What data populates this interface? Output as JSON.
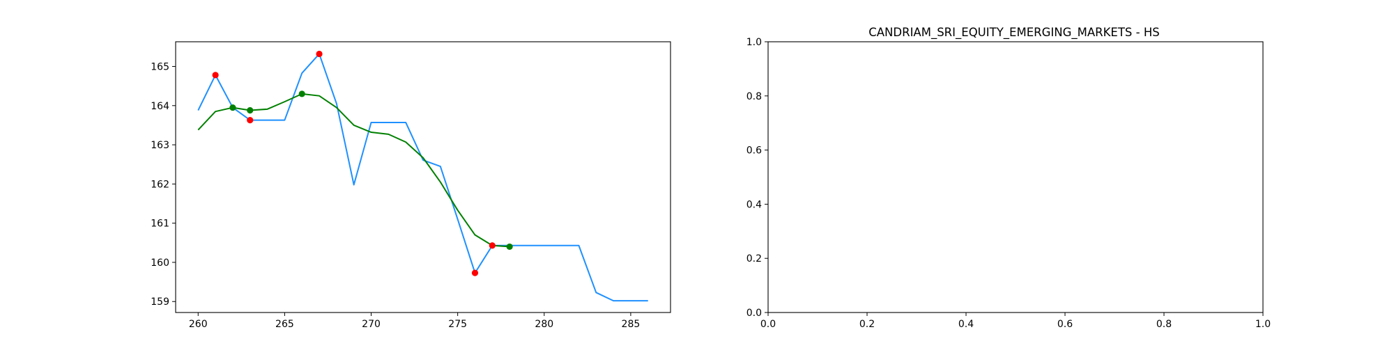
{
  "chart_data": [
    {
      "type": "line",
      "title": "",
      "xlabel": "",
      "ylabel": "",
      "xlim": [
        258.7,
        287.3
      ],
      "ylim": [
        158.72,
        165.63
      ],
      "grid": false,
      "legend": "none",
      "xticks": [
        260,
        265,
        270,
        275,
        280,
        285
      ],
      "yticks": [
        159,
        160,
        161,
        162,
        163,
        164,
        165
      ],
      "series": [
        {
          "kind": "line",
          "color": "#1e90ff",
          "x": [
            260,
            261,
            262,
            263,
            264,
            265,
            266,
            267,
            268,
            269,
            270,
            271,
            272,
            273,
            274,
            275,
            276,
            277,
            278,
            279,
            280,
            281,
            282,
            283,
            284,
            285,
            286
          ],
          "y": [
            163.88,
            164.78,
            163.95,
            163.63,
            163.63,
            163.63,
            164.83,
            165.32,
            164.05,
            161.98,
            163.57,
            163.57,
            163.57,
            162.61,
            162.45,
            161.1,
            159.73,
            160.43,
            160.43,
            160.43,
            160.43,
            160.43,
            160.43,
            159.23,
            159.02,
            159.02,
            159.02
          ]
        },
        {
          "kind": "line",
          "color": "#008000",
          "x": [
            260,
            261,
            262,
            263,
            264,
            265,
            266,
            267,
            268,
            269,
            270,
            271,
            272,
            273,
            274,
            275,
            276,
            277,
            278
          ],
          "y": [
            163.38,
            163.85,
            163.95,
            163.88,
            163.91,
            164.1,
            164.3,
            164.25,
            163.95,
            163.5,
            163.32,
            163.27,
            163.07,
            162.67,
            162.05,
            161.33,
            160.7,
            160.43,
            160.4
          ]
        },
        {
          "kind": "scatter",
          "color": "#ff0000",
          "x": [
            261,
            263,
            267,
            276,
            277
          ],
          "y": [
            164.78,
            163.63,
            165.32,
            159.73,
            160.43
          ]
        },
        {
          "kind": "scatter",
          "color": "#008000",
          "x": [
            262,
            263,
            266,
            278
          ],
          "y": [
            163.95,
            163.88,
            164.3,
            160.4
          ]
        }
      ]
    },
    {
      "type": "line",
      "title": "CANDRIAM_SRI_EQUITY_EMERGING_MARKETS - HS",
      "xlabel": "",
      "ylabel": "",
      "xlim": [
        0,
        1
      ],
      "ylim": [
        0,
        1
      ],
      "grid": false,
      "legend": "none",
      "xticks": [
        0.0,
        0.2,
        0.4,
        0.6,
        0.8,
        1.0
      ],
      "xtick_labels": [
        "0.0",
        "0.2",
        "0.4",
        "0.6",
        "0.8",
        "1.0"
      ],
      "yticks": [
        0.0,
        0.2,
        0.4,
        0.6,
        0.8,
        1.0
      ],
      "ytick_labels": [
        "0.0",
        "0.2",
        "0.4",
        "0.6",
        "0.8",
        "1.0"
      ],
      "series": []
    }
  ]
}
